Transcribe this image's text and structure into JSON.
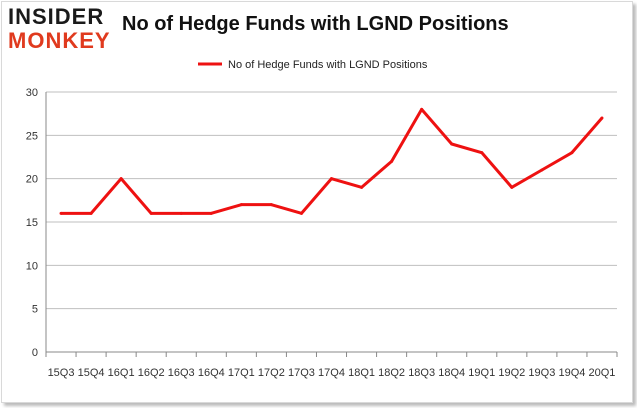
{
  "logo": {
    "line1": "INSIDER",
    "line2": "MONKEY"
  },
  "chart_data": {
    "type": "line",
    "title": "No of Hedge Funds with LGND Positions",
    "xlabel": "",
    "ylabel": "",
    "categories": [
      "15Q3",
      "15Q4",
      "16Q1",
      "16Q2",
      "16Q3",
      "16Q4",
      "17Q1",
      "17Q2",
      "17Q3",
      "17Q4",
      "18Q1",
      "18Q2",
      "18Q3",
      "18Q4",
      "19Q1",
      "19Q2",
      "19Q3",
      "19Q4",
      "20Q1"
    ],
    "series": [
      {
        "name": "No of Hedge Funds with LGND Positions",
        "color": "#ee1111",
        "values": [
          16,
          16,
          20,
          16,
          16,
          16,
          17,
          17,
          16,
          20,
          19,
          22,
          28,
          24,
          23,
          19,
          21,
          23,
          27
        ]
      }
    ],
    "ylim": [
      0,
      30
    ],
    "yticks": [
      0,
      5,
      10,
      15,
      20,
      25,
      30
    ],
    "grid": true,
    "legend_position": "top-center"
  }
}
